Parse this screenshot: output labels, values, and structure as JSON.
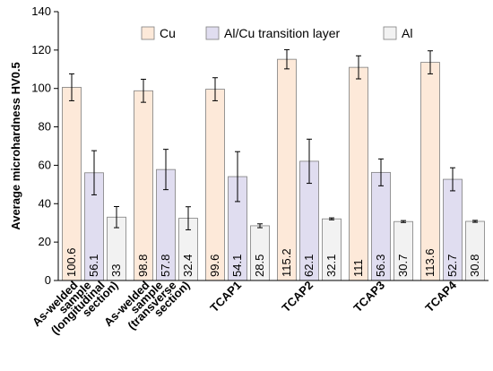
{
  "chart_data": {
    "type": "bar",
    "ylabel": "Average microhardness HV0.5",
    "ylim": [
      0,
      140
    ],
    "yticks": [
      0,
      20,
      40,
      60,
      80,
      100,
      120,
      140
    ],
    "grid": false,
    "legend_position": "top",
    "categories": [
      [
        "As-welded",
        "sample",
        "(longitudinal",
        "section)"
      ],
      [
        "As-welded",
        "sample",
        "(transverse",
        "section)"
      ],
      [
        "TCAP1"
      ],
      [
        "TCAP2"
      ],
      [
        "TCAP3"
      ],
      [
        "TCAP4"
      ]
    ],
    "series": [
      {
        "name": "Cu",
        "color": "#fde9d9",
        "values": [
          100.6,
          98.8,
          99.6,
          115.2,
          111,
          113.6
        ],
        "labels": [
          "100.6",
          "98.8",
          "99.6",
          "115.2",
          "111",
          "113.6"
        ],
        "errors": [
          7,
          6,
          6,
          5,
          6,
          6
        ]
      },
      {
        "name": "Al/Cu transition layer",
        "color": "#e0ddf0",
        "values": [
          56.1,
          57.8,
          54.1,
          62.1,
          56.3,
          52.7
        ],
        "labels": [
          "56.1",
          "57.8",
          "54.1",
          "62.1",
          "56.3",
          "52.7"
        ],
        "errors": [
          11.5,
          10.5,
          13,
          11.5,
          7,
          6
        ]
      },
      {
        "name": "Al",
        "color": "#f2f2f2",
        "values": [
          33,
          32.4,
          28.5,
          32.1,
          30.7,
          30.8
        ],
        "labels": [
          "33",
          "32.4",
          "28.5",
          "32.1",
          "30.7",
          "30.8"
        ],
        "errors": [
          5.5,
          6,
          1,
          0.5,
          0.5,
          0.5
        ]
      }
    ]
  }
}
